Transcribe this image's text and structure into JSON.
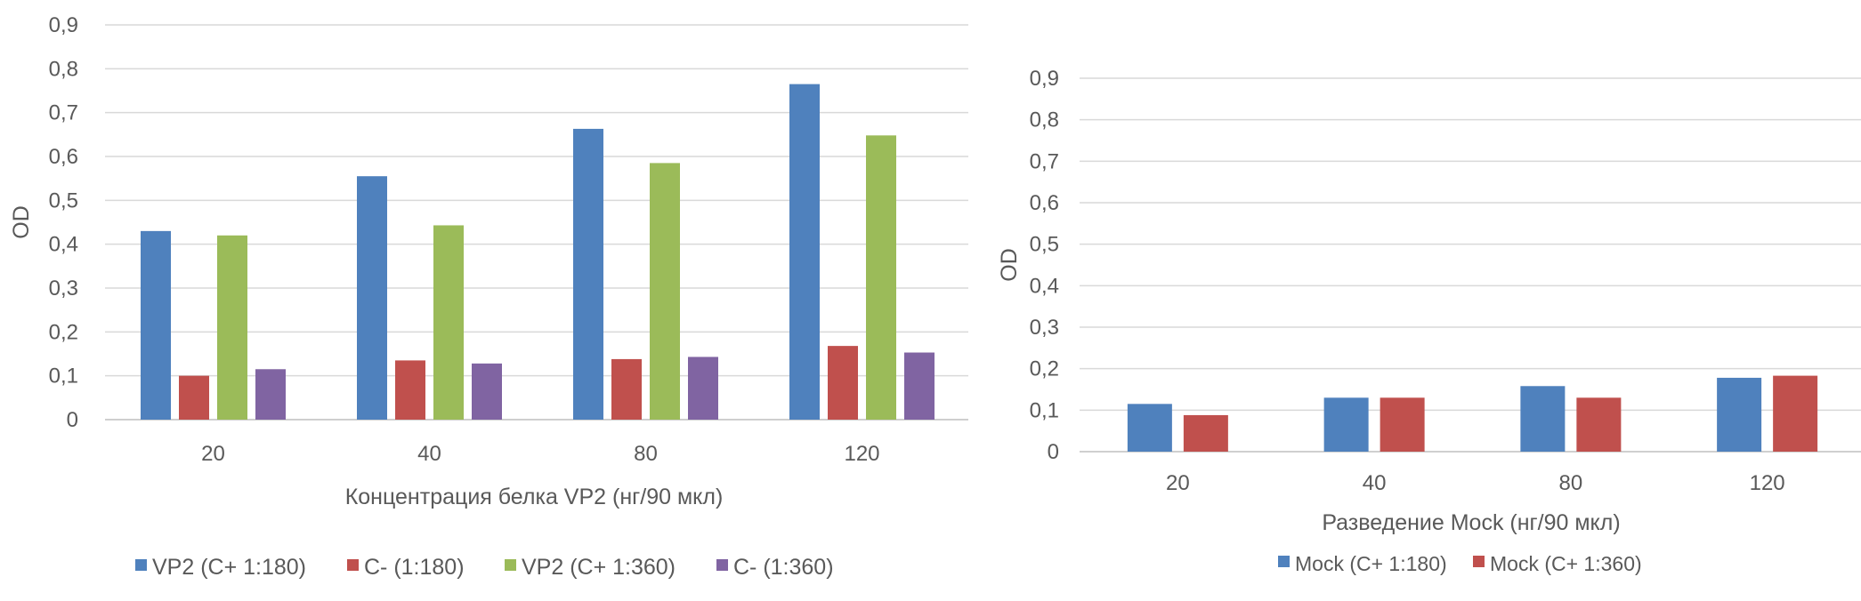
{
  "chart_data": [
    {
      "type": "bar",
      "title": "",
      "xlabel": "Концентрация белка VP2 (нг/90 мкл)",
      "ylabel": "OD",
      "ylim": [
        0,
        0.9
      ],
      "yticks": [
        "0",
        "0,1",
        "0,2",
        "0,3",
        "0,4",
        "0,5",
        "0,6",
        "0,7",
        "0,8",
        "0,9"
      ],
      "categories": [
        "20",
        "40",
        "80",
        "120"
      ],
      "legend_position": "bottom",
      "series": [
        {
          "name": "VP2 (C+ 1:180)",
          "color": "#4f81bd",
          "values": [
            0.43,
            0.555,
            0.663,
            0.765
          ]
        },
        {
          "name": "C- (1:180)",
          "color": "#c0504d",
          "values": [
            0.1,
            0.135,
            0.138,
            0.168
          ]
        },
        {
          "name": "VP2  (C+ 1:360)",
          "color": "#9bbb59",
          "values": [
            0.42,
            0.443,
            0.585,
            0.648
          ]
        },
        {
          "name": "C- (1:360)",
          "color": "#8064a2",
          "values": [
            0.115,
            0.128,
            0.143,
            0.153
          ]
        }
      ]
    },
    {
      "type": "bar",
      "title": "",
      "xlabel": "Разведение Mock (нг/90 мкл)",
      "ylabel": "OD",
      "ylim": [
        0,
        0.9
      ],
      "yticks": [
        "0",
        "0,1",
        "0,2",
        "0,3",
        "0,4",
        "0,5",
        "0,6",
        "0,7",
        "0,8",
        "0,9"
      ],
      "categories": [
        "20",
        "40",
        "80",
        "120"
      ],
      "legend_position": "bottom",
      "series": [
        {
          "name": "Mock (C+ 1:180)",
          "color": "#4f81bd",
          "values": [
            0.115,
            0.13,
            0.158,
            0.178
          ]
        },
        {
          "name": "Mock (C+ 1:360)",
          "color": "#c0504d",
          "values": [
            0.088,
            0.13,
            0.13,
            0.183
          ]
        }
      ]
    }
  ]
}
